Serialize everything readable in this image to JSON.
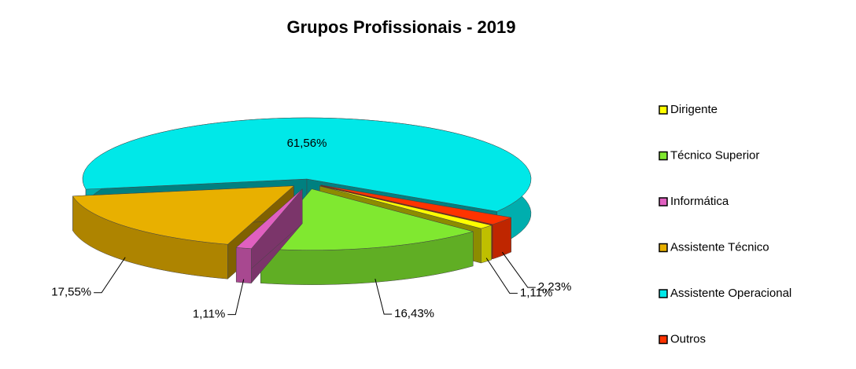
{
  "chart_data": {
    "type": "pie3d",
    "title": "Grupos Profissionais - 2019",
    "categories": [
      "Dirigente",
      "Técnico Superior",
      "Informática",
      "Assistente Técnico",
      "Assistente Operacional",
      "Outros"
    ],
    "values": [
      1.11,
      16.43,
      1.11,
      17.55,
      61.56,
      2.23
    ],
    "value_labels": [
      "1,11%",
      "16,43%",
      "1,11%",
      "17,55%",
      "61,56%",
      "2,23%"
    ],
    "colors": [
      "#ffff00",
      "#80e830",
      "#e060c0",
      "#e8b000",
      "#00e8e8",
      "#ff3300"
    ],
    "legend": "right"
  }
}
